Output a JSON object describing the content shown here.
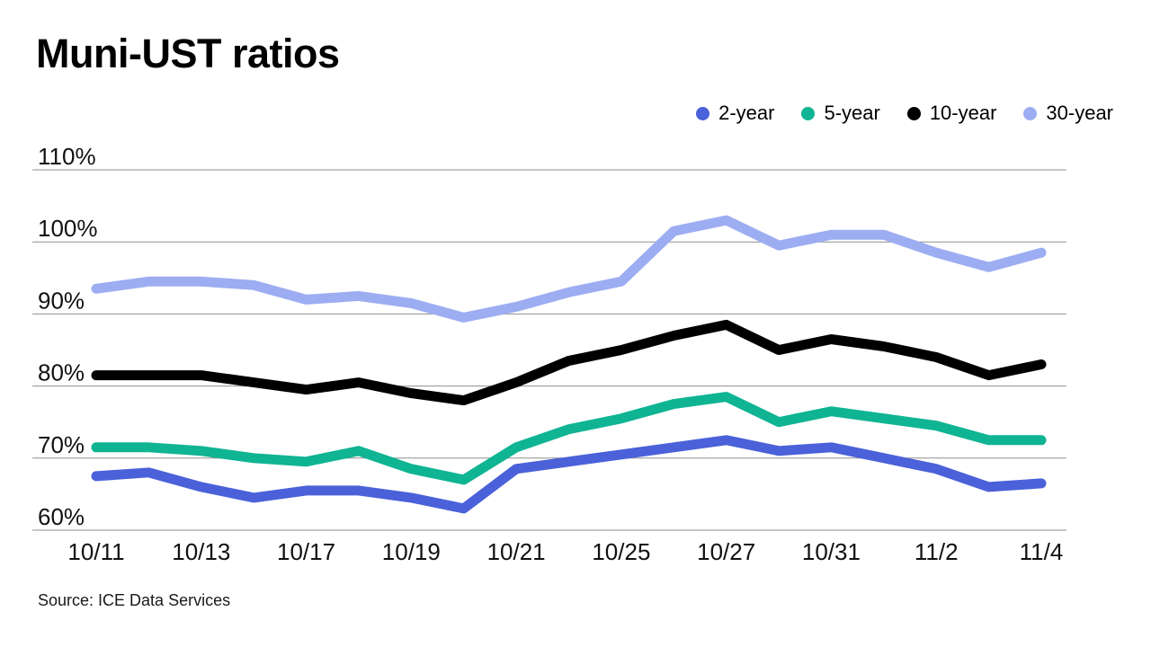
{
  "title": "Muni-UST ratios",
  "source": "Source: ICE Data Services",
  "legend": [
    {
      "label": "2-year",
      "color": "#4a61d9"
    },
    {
      "label": "5-year",
      "color": "#0fb493"
    },
    {
      "label": "10-year",
      "color": "#000000"
    },
    {
      "label": "30-year",
      "color": "#9dadf2"
    }
  ],
  "chart_data": {
    "type": "line",
    "title": "Muni-UST ratios",
    "xlabel": "",
    "ylabel": "",
    "x": [
      "10/11",
      "10/12",
      "10/13",
      "10/14",
      "10/17",
      "10/18",
      "10/19",
      "10/20",
      "10/21",
      "10/24",
      "10/25",
      "10/26",
      "10/27",
      "10/28",
      "10/31",
      "11/1",
      "11/2",
      "11/3",
      "11/4"
    ],
    "x_tick_labels": [
      "10/11",
      "10/13",
      "10/17",
      "10/19",
      "10/21",
      "10/25",
      "10/27",
      "10/31",
      "11/2",
      "11/4"
    ],
    "x_tick_every": 2,
    "ylim": [
      60,
      110
    ],
    "y_ticks": [
      110,
      100,
      90,
      80,
      70,
      60
    ],
    "y_tick_suffix": "%",
    "grid": "horizontal",
    "legend_position": "top-right",
    "series": [
      {
        "name": "2-year",
        "color": "#4a61d9",
        "values": [
          67.5,
          68,
          66,
          64.5,
          65.5,
          65.5,
          64.5,
          63,
          68.5,
          69.5,
          70.5,
          71.5,
          72.5,
          71,
          71.5,
          70,
          68.5,
          66,
          66.5
        ]
      },
      {
        "name": "5-year",
        "color": "#0fb493",
        "values": [
          71.5,
          71.5,
          71,
          70,
          69.5,
          71,
          68.5,
          67,
          71.5,
          74,
          75.5,
          77.5,
          78.5,
          75,
          76.5,
          75.5,
          74.5,
          72.5,
          72.5
        ]
      },
      {
        "name": "10-year",
        "color": "#000000",
        "values": [
          81.5,
          81.5,
          81.5,
          80.5,
          79.5,
          80.5,
          79,
          78,
          80.5,
          83.5,
          85,
          87,
          88.5,
          85,
          86.5,
          85.5,
          84,
          81.5,
          83
        ]
      },
      {
        "name": "30-year",
        "color": "#9dadf2",
        "values": [
          93.5,
          94.5,
          94.5,
          94,
          92,
          92.5,
          91.5,
          89.5,
          91,
          93,
          94.5,
          101.5,
          103,
          99.5,
          101,
          101,
          98.5,
          96.5,
          98.5
        ]
      }
    ]
  }
}
